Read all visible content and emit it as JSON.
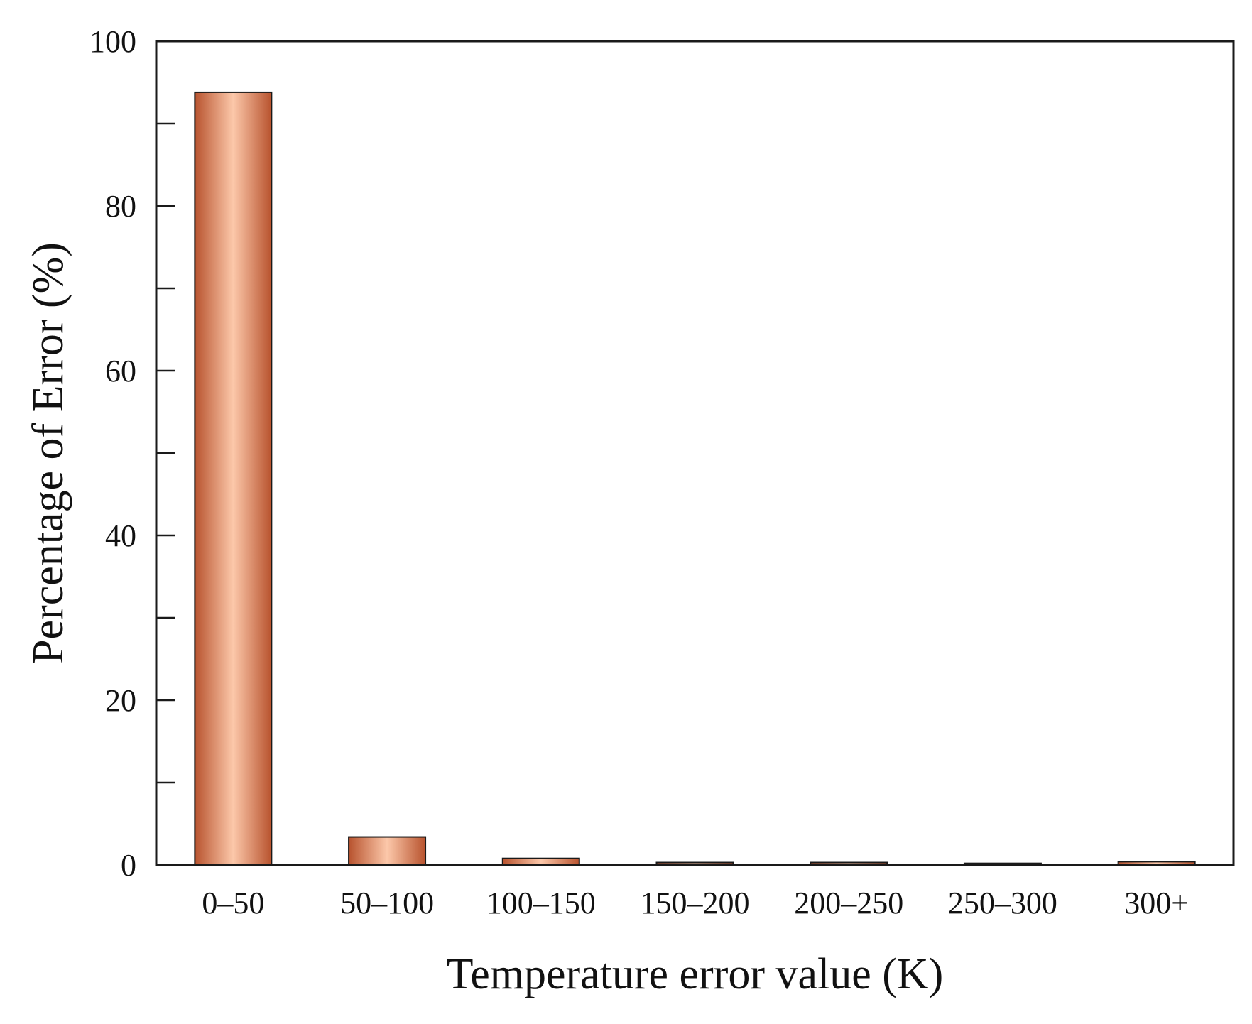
{
  "chart_data": {
    "type": "bar",
    "title": "",
    "xlabel": "Temperature error value (K)",
    "ylabel": "Percentage of Error (%)",
    "categories": [
      "0–50",
      "50–100",
      "100–150",
      "150–200",
      "200–250",
      "250–300",
      "300+"
    ],
    "values": [
      93.8,
      3.4,
      0.8,
      0.3,
      0.3,
      0.2,
      0.4
    ],
    "ylim": [
      0,
      100
    ],
    "yticks": [
      0,
      20,
      40,
      60,
      80,
      100
    ],
    "yticks_minor": [
      10,
      30,
      50,
      70,
      90
    ],
    "grid": false,
    "legend": "none",
    "bar_colors": {
      "edge": "#b8532e",
      "center": "#fcc8aa",
      "outline": "#1a1a1a"
    }
  }
}
